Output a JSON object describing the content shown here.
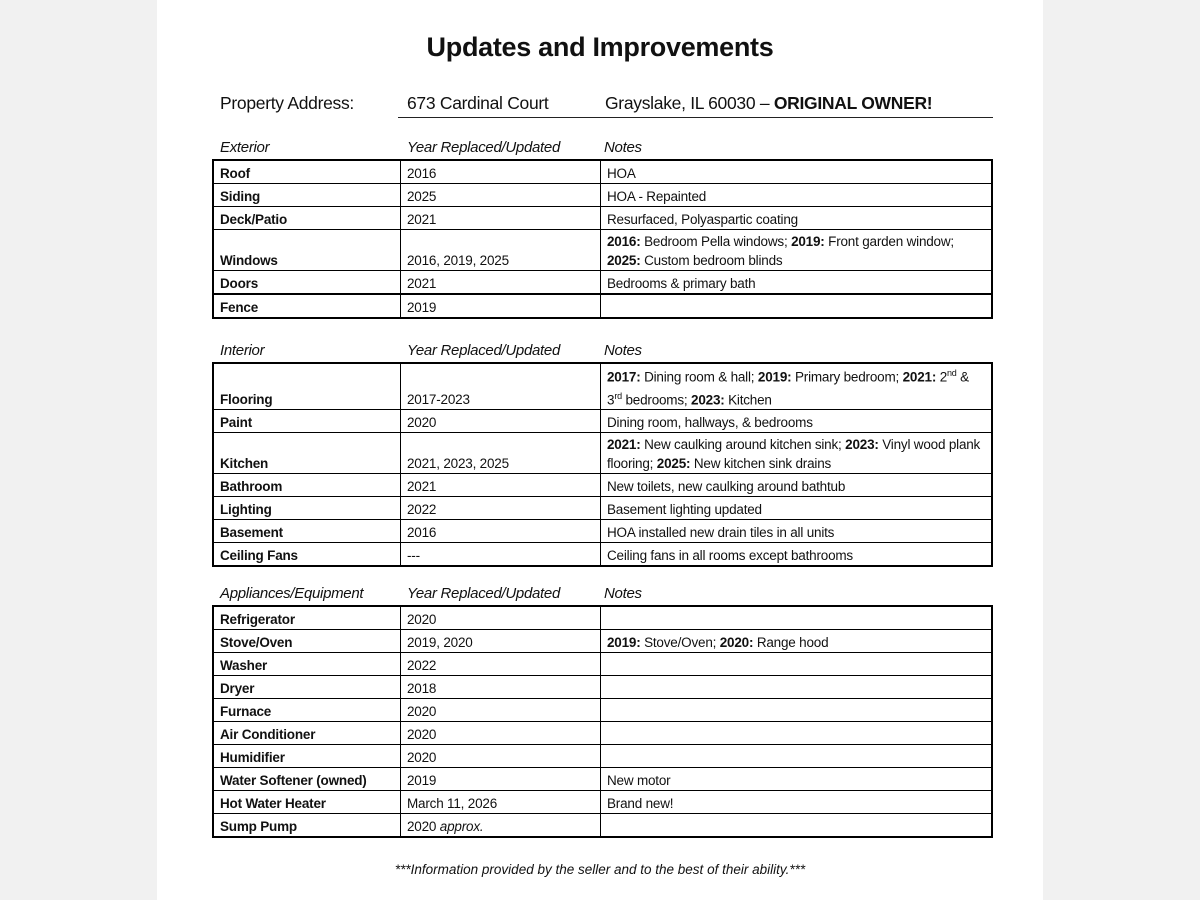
{
  "title": "Updates and Improvements",
  "address": {
    "label": "Property Address:",
    "street": "673 Cardinal Court",
    "city": "Grayslake, IL 60030 – ",
    "note": "ORIGINAL OWNER!"
  },
  "sections": [
    {
      "header": [
        "Exterior",
        "Year Replaced/Updated",
        "Notes"
      ],
      "rows": [
        {
          "item": "Roof",
          "year": "2016",
          "notes": [
            {
              "t": "HOA"
            }
          ]
        },
        {
          "item": "Siding",
          "year": "2025",
          "notes": [
            {
              "t": "HOA - Repainted"
            }
          ]
        },
        {
          "item": "Deck/Patio",
          "year": "2021",
          "notes": [
            {
              "t": "Resurfaced, Polyaspartic coating"
            }
          ]
        },
        {
          "item": "Windows",
          "year": "2016, 2019, 2025",
          "notes": [
            {
              "t": "2016:",
              "b": true
            },
            {
              "t": " Bedroom Pella windows; "
            },
            {
              "t": "2019:",
              "b": true
            },
            {
              "t": " Front garden window; "
            },
            {
              "t": "2025:",
              "b": true
            },
            {
              "t": " Custom bedroom blinds"
            }
          ]
        },
        {
          "item": "Doors",
          "year": "2021",
          "notes": [
            {
              "t": "Bedrooms & primary bath"
            }
          ]
        },
        {
          "item": "Fence",
          "year": "2019",
          "notes": []
        }
      ]
    },
    {
      "header": [
        "Interior",
        "Year Replaced/Updated",
        "Notes"
      ],
      "rows": [
        {
          "item": "Flooring",
          "year": "2017-2023",
          "notes": [
            {
              "t": "2017:",
              "b": true
            },
            {
              "t": " Dining room & hall; "
            },
            {
              "t": "2019:",
              "b": true
            },
            {
              "t": " Primary bedroom; "
            },
            {
              "t": "2021:",
              "b": true
            },
            {
              "t": " 2"
            },
            {
              "t": "nd",
              "sup": true
            },
            {
              "t": " & 3"
            },
            {
              "t": "rd",
              "sup": true
            },
            {
              "t": " bedrooms; "
            },
            {
              "t": "2023:",
              "b": true
            },
            {
              "t": " Kitchen"
            }
          ]
        },
        {
          "item": "Paint",
          "year": "2020",
          "notes": [
            {
              "t": "Dining room, hallways, & bedrooms"
            }
          ]
        },
        {
          "item": "Kitchen",
          "year": "2021, 2023, 2025",
          "notes": [
            {
              "t": "2021:",
              "b": true
            },
            {
              "t": " New caulking around kitchen sink; "
            },
            {
              "t": "2023:",
              "b": true
            },
            {
              "t": " Vinyl wood plank flooring; "
            },
            {
              "t": "2025:",
              "b": true
            },
            {
              "t": " New kitchen sink drains"
            }
          ]
        },
        {
          "item": "Bathroom",
          "year": "2021",
          "notes": [
            {
              "t": "New toilets, new caulking around bathtub"
            }
          ]
        },
        {
          "item": "Lighting",
          "year": "2022",
          "notes": [
            {
              "t": "Basement lighting updated"
            }
          ]
        },
        {
          "item": "Basement",
          "year": "2016",
          "notes": [
            {
              "t": "HOA installed new drain tiles in all units"
            }
          ]
        },
        {
          "item": "Ceiling Fans",
          "year": "---",
          "notes": [
            {
              "t": "Ceiling fans in all rooms except bathrooms"
            }
          ]
        }
      ]
    },
    {
      "header": [
        "Appliances/Equipment",
        "Year Replaced/Updated",
        "Notes"
      ],
      "rows": [
        {
          "item": "Refrigerator",
          "year": "2020",
          "notes": []
        },
        {
          "item": "Stove/Oven",
          "year": "2019, 2020",
          "notes": [
            {
              "t": "2019:",
              "b": true
            },
            {
              "t": " Stove/Oven; "
            },
            {
              "t": "2020:",
              "b": true
            },
            {
              "t": " Range hood"
            }
          ]
        },
        {
          "item": "Washer",
          "year": "2022",
          "notes": []
        },
        {
          "item": "Dryer",
          "year": "2018",
          "notes": []
        },
        {
          "item": "Furnace",
          "year": "2020",
          "notes": []
        },
        {
          "item": "Air Conditioner",
          "year": "2020",
          "notes": []
        },
        {
          "item": "Humidifier",
          "year": "2020",
          "notes": []
        },
        {
          "item": "Water Softener (owned)",
          "year": "2019",
          "notes": [
            {
              "t": "New motor"
            }
          ]
        },
        {
          "item": "Hot Water Heater",
          "year": "March 11, 2026",
          "notes": [
            {
              "t": "Brand new!"
            }
          ]
        },
        {
          "item": "Sump Pump",
          "year": "2020",
          "year_suffix": " approx.",
          "notes": []
        }
      ]
    }
  ],
  "footer": "***Information provided by the seller and to the best of their ability.***"
}
